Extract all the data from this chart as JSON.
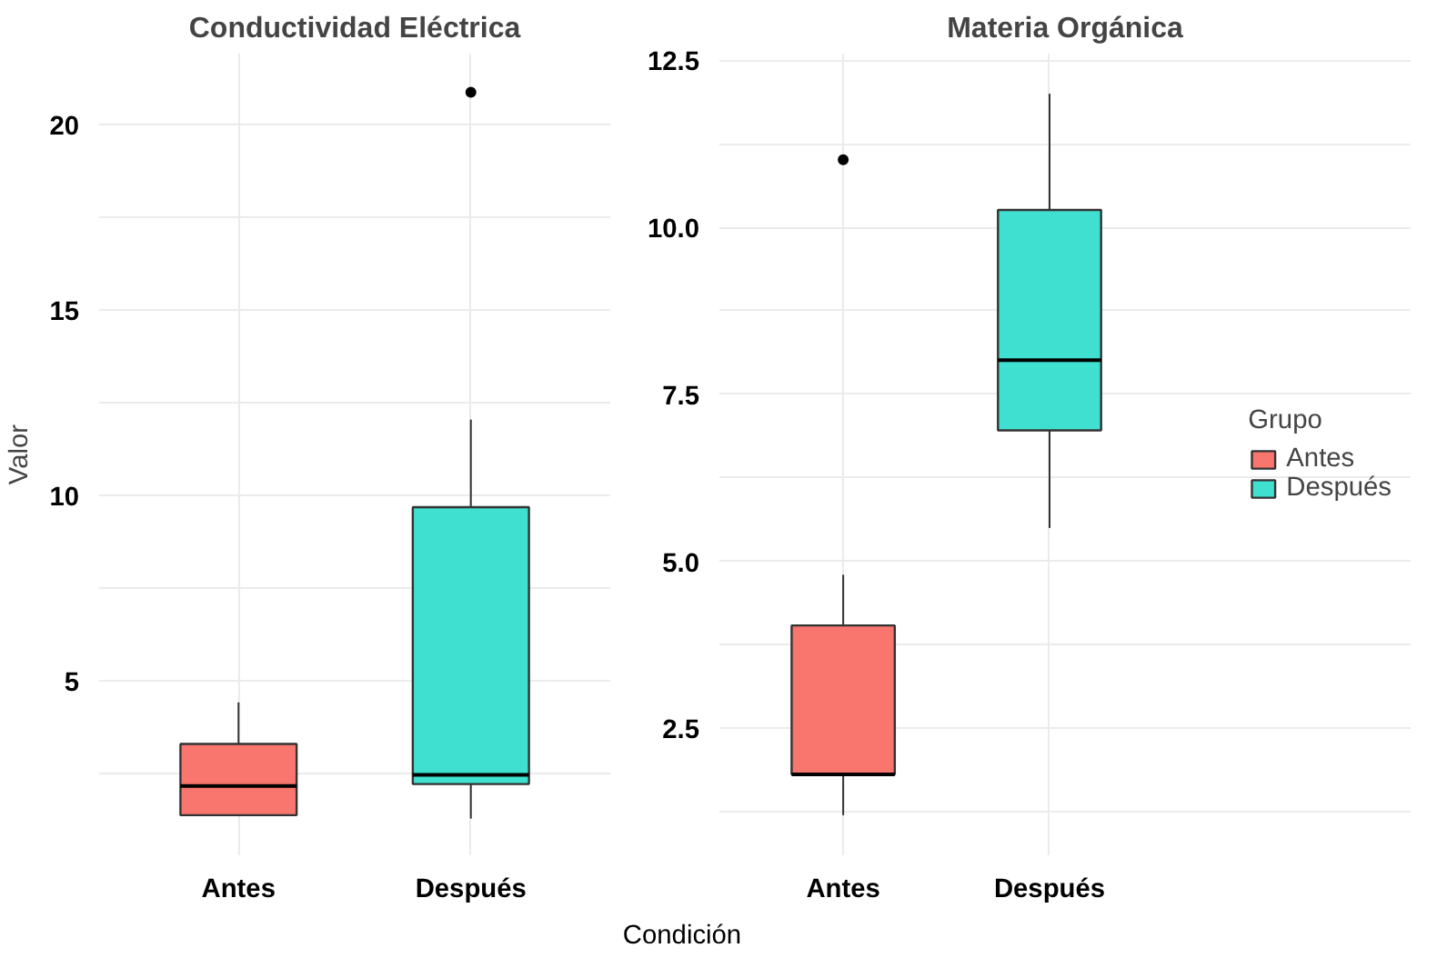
{
  "chart_data": [
    {
      "type": "box",
      "title": "Conductividad Eléctrica",
      "xlabel": "Condición",
      "ylabel": "Valor",
      "categories": [
        "Antes",
        "Después"
      ],
      "ylim": [
        0.3,
        21.9
      ],
      "yticks": [
        {
          "value": 2.5,
          "label": null
        },
        5,
        {
          "value": 7.5,
          "label": null
        },
        10,
        {
          "value": 12.5,
          "label": null
        },
        15,
        {
          "value": 17.5,
          "label": null
        },
        20
      ],
      "grid": true,
      "legend": false,
      "series": [
        {
          "color": "#f8766d",
          "boxes": [
            {
              "low": 1.38,
              "q1": 1.38,
              "median": 2.17,
              "q3": 3.3,
              "high": 4.42
            },
            null
          ]
        },
        {
          "color": "#40e0d0",
          "boxes": [
            null,
            {
              "low": 1.29,
              "q1": 2.22,
              "median": 2.47,
              "q3": 9.68,
              "high": 12.04,
              "outliers": [
                20.86
              ]
            }
          ]
        }
      ]
    },
    {
      "type": "box",
      "title": "Materia Orgánica",
      "legend_title": "Grupo",
      "categories": [
        "Antes",
        "Después"
      ],
      "ylim": [
        0.6,
        12.6
      ],
      "yticks": [
        {
          "value": 1.25,
          "label": null
        },
        2.5,
        {
          "value": 3.75,
          "label": null
        },
        {
          "value": 5,
          "label": "5.0"
        },
        {
          "value": 6.25,
          "label": null
        },
        7.5,
        {
          "value": 8.75,
          "label": null
        },
        {
          "value": 10,
          "label": "10.0"
        },
        {
          "value": 11.25,
          "label": null
        },
        12.5
      ],
      "grid": true,
      "legend": "right",
      "series": [
        {
          "name": "Antes",
          "color": "#f8766d",
          "boxes": [
            {
              "low": 1.2,
              "q1": 1.81,
              "median": 1.81,
              "q3": 4.04,
              "high": 4.8,
              "outliers": [
                11.01
              ]
            },
            null
          ]
        },
        {
          "name": "Después",
          "color": "#40e0d0",
          "boxes": [
            null,
            {
              "low": 5.5,
              "q1": 6.96,
              "median": 8.01,
              "q3": 10.26,
              "high": 12.0
            }
          ]
        }
      ]
    }
  ]
}
